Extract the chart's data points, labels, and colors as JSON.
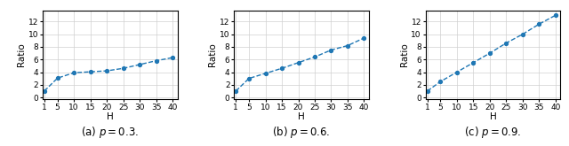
{
  "H_values": [
    1,
    5,
    10,
    15,
    20,
    25,
    30,
    35,
    40
  ],
  "p03_ratio": [
    1.0,
    3.05,
    3.9,
    4.05,
    4.2,
    4.6,
    5.2,
    5.8,
    6.3
  ],
  "p06_ratio": [
    1.0,
    3.0,
    3.8,
    4.6,
    5.5,
    6.4,
    7.5,
    8.2,
    9.4
  ],
  "p09_ratio": [
    1.0,
    2.5,
    4.0,
    5.5,
    7.0,
    8.6,
    10.0,
    11.6,
    13.0
  ],
  "xlim": [
    0.5,
    41.5
  ],
  "ylim": [
    -0.3,
    13.8
  ],
  "xticks": [
    1,
    5,
    10,
    15,
    20,
    25,
    30,
    35,
    40
  ],
  "yticks": [
    0,
    2,
    4,
    6,
    8,
    10,
    12
  ],
  "xlabel": "H",
  "ylabel": "Ratio",
  "line_color": "#1f77b4",
  "line_style": "--",
  "marker": "o",
  "marker_size": 2.8,
  "linewidth": 1.0,
  "caption_a": "(a) $p=0.3$.",
  "caption_b": "(b) $p=0.6$.",
  "caption_c": "(c) $p=0.9$.",
  "caption_fontsize": 8.5,
  "tick_fontsize": 6.5,
  "label_fontsize": 7.5,
  "grid_color": "#d0d0d0",
  "grid_linewidth": 0.5
}
